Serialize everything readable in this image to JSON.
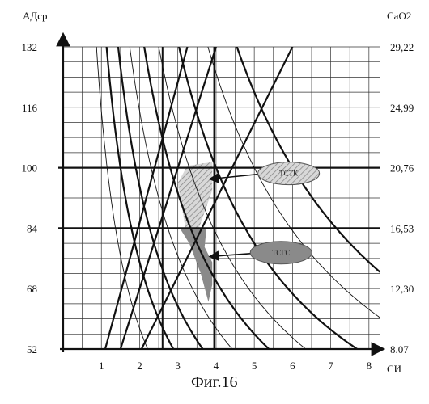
{
  "figure_caption": "Фиг.16",
  "chart_data": {
    "type": "line",
    "title": "",
    "xlabel": "СИ",
    "ylabel_left": "АДср",
    "ylabel_right": "CaO2",
    "x_ticks": [
      "1",
      "2",
      "3",
      "4",
      "5",
      "6",
      "7",
      "8"
    ],
    "x_range": [
      0,
      8.3
    ],
    "left_ticks": [
      "52",
      "68",
      "84",
      "100",
      "116",
      "132"
    ],
    "left_range": [
      52,
      132
    ],
    "right_ticks": [
      "8.07",
      "12,30",
      "16,53",
      "20,76",
      "24,99",
      "29,22"
    ],
    "right_range": [
      8.07,
      29.22
    ],
    "grid": true,
    "reference_lines": [
      {
        "axis": "y",
        "value": 100
      },
      {
        "axis": "y",
        "value": 84
      },
      {
        "axis": "x",
        "value": 2.6
      },
      {
        "axis": "x",
        "value": 3.95
      }
    ],
    "hyperbolas": [
      {
        "k": 600,
        "weight": "bold"
      },
      {
        "k": 500,
        "weight": "thin"
      },
      {
        "k": 400,
        "weight": "bold"
      },
      {
        "k": 330,
        "weight": "thin"
      },
      {
        "k": 280,
        "weight": "bold"
      },
      {
        "k": 230,
        "weight": "thin"
      },
      {
        "k": 190,
        "weight": "bold"
      },
      {
        "k": 150,
        "weight": "bold"
      },
      {
        "k": 115,
        "weight": "thin"
      }
    ],
    "rays": [
      {
        "from": [
          1.5,
          52
        ],
        "to": [
          4.0,
          132
        ]
      },
      {
        "from": [
          2.05,
          52
        ],
        "to": [
          6.0,
          132
        ]
      },
      {
        "from": [
          1.1,
          52
        ],
        "to": [
          3.25,
          132
        ]
      }
    ],
    "regions": [
      {
        "label": "ТСТК",
        "pattern": "hatched",
        "vertices": [
          [
            3.0,
            96
          ],
          [
            3.25,
            100.5
          ],
          [
            3.9,
            101.5
          ],
          [
            3.9,
            94
          ],
          [
            3.55,
            84
          ],
          [
            3.2,
            84
          ]
        ]
      },
      {
        "label": "ТСГС",
        "pattern": "solid",
        "vertices": [
          [
            3.05,
            84
          ],
          [
            3.75,
            84
          ],
          [
            3.7,
            79
          ],
          [
            3.9,
            75
          ],
          [
            3.9,
            69
          ],
          [
            3.8,
            64.5
          ],
          [
            3.6,
            72
          ],
          [
            3.3,
            80
          ]
        ]
      }
    ],
    "annotations": [
      {
        "text": "ТСТК",
        "fill": "#ffffff",
        "hatch": true,
        "points_to": [
          3.75,
          97
        ],
        "anchor": [
          5.9,
          98.5
        ]
      },
      {
        "text": "ТСГС",
        "fill": "#8a8a8a",
        "hatch": false,
        "points_to": [
          3.75,
          76.5
        ],
        "anchor": [
          5.7,
          77.5
        ]
      }
    ],
    "colors": {
      "ink": "#111111",
      "grid": "#333333",
      "hatched_region": "#d8d8d8",
      "solid_region": "#8a8a8a"
    }
  }
}
